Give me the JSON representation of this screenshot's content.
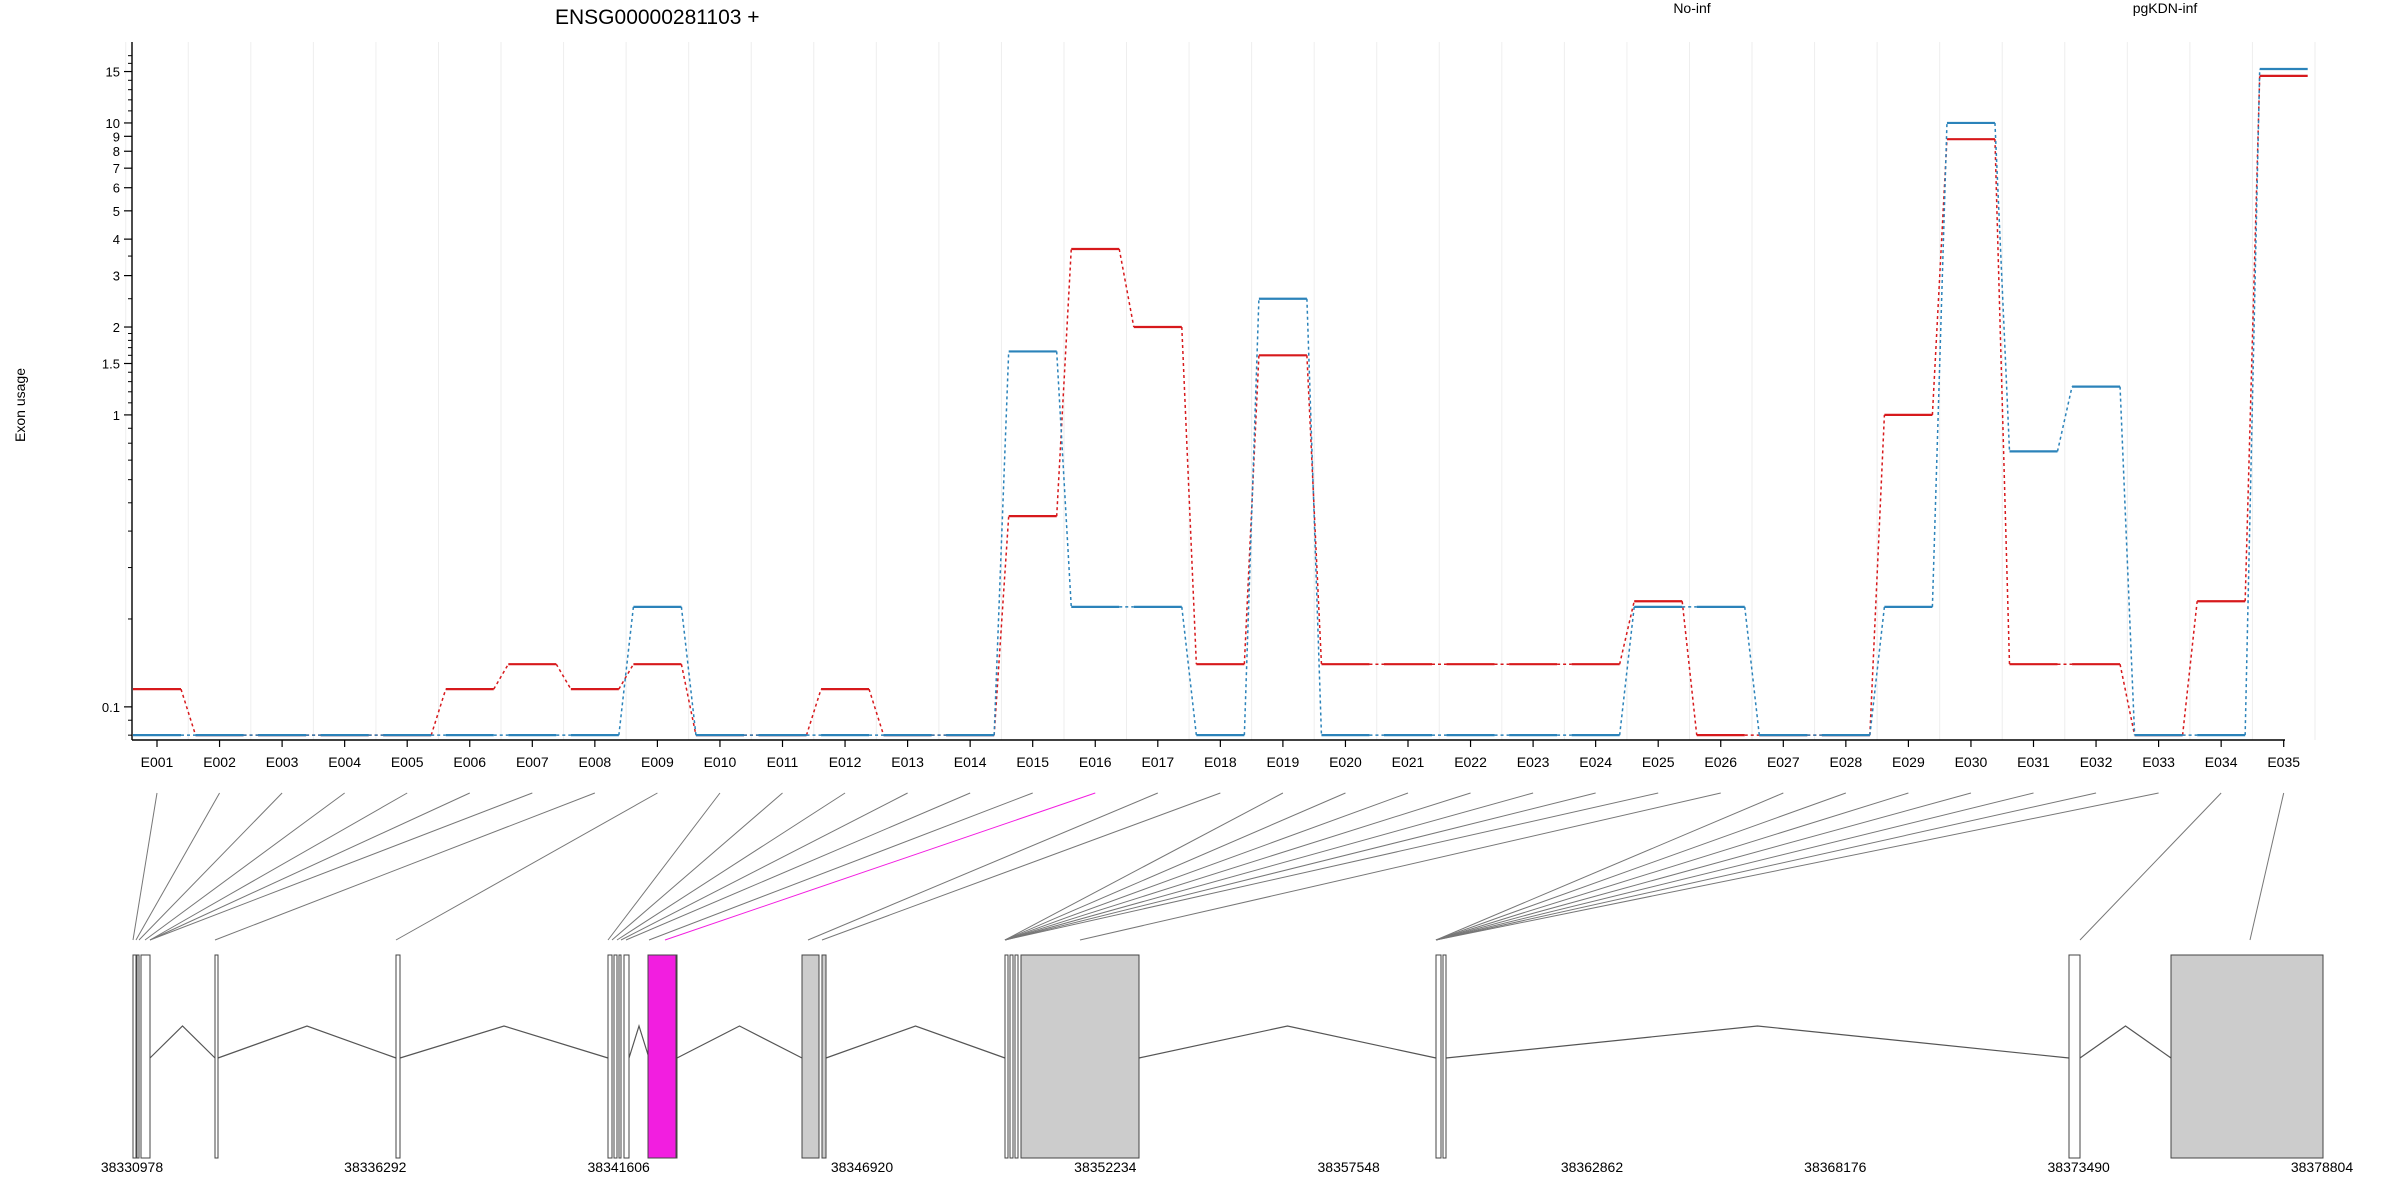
{
  "chart_data": {
    "type": "line",
    "title": "ENSG00000281103 +",
    "ylabel": "Exon usage",
    "yscale": "log",
    "ylim": [
      0.077,
      17.5
    ],
    "yticks": [
      {
        "v": 0.1,
        "label": "0.1"
      },
      {
        "v": 1,
        "label": "1"
      },
      {
        "v": 1.5,
        "label": "1.5"
      },
      {
        "v": 2,
        "label": "2"
      },
      {
        "v": 3,
        "label": "3"
      },
      {
        "v": 4,
        "label": "4"
      },
      {
        "v": 5,
        "label": "5"
      },
      {
        "v": 6,
        "label": "6"
      },
      {
        "v": 7,
        "label": "7"
      },
      {
        "v": 8,
        "label": "8"
      },
      {
        "v": 9,
        "label": "9"
      },
      {
        "v": 10,
        "label": "10"
      },
      {
        "v": 15,
        "label": "15"
      }
    ],
    "categories": [
      "E001",
      "E002",
      "E003",
      "E004",
      "E005",
      "E006",
      "E007",
      "E008",
      "E009",
      "E010",
      "E011",
      "E012",
      "E013",
      "E014",
      "E015",
      "E016",
      "E017",
      "E018",
      "E019",
      "E020",
      "E021",
      "E022",
      "E023",
      "E024",
      "E025",
      "E026",
      "E027",
      "E028",
      "E029",
      "E030",
      "E031",
      "E032",
      "E033",
      "E034",
      "E035"
    ],
    "series": [
      {
        "name": "No-inf",
        "color": "#d7191c",
        "values": [
          0.115,
          0.08,
          0.08,
          0.08,
          0.08,
          0.115,
          0.14,
          0.115,
          0.14,
          0.08,
          0.08,
          0.115,
          0.08,
          0.08,
          0.45,
          3.7,
          2.0,
          0.14,
          1.6,
          0.14,
          0.14,
          0.14,
          0.14,
          0.14,
          0.23,
          0.08,
          0.08,
          0.08,
          1.0,
          8.8,
          0.14,
          0.14,
          0.08,
          0.23,
          14.5
        ]
      },
      {
        "name": "pgKDN-inf",
        "color": "#2b83ba",
        "values": [
          0.08,
          0.08,
          0.08,
          0.08,
          0.08,
          0.08,
          0.08,
          0.08,
          0.22,
          0.08,
          0.08,
          0.08,
          0.08,
          0.08,
          1.65,
          0.22,
          0.22,
          0.08,
          2.5,
          0.08,
          0.08,
          0.08,
          0.08,
          0.08,
          0.22,
          0.22,
          0.08,
          0.08,
          0.22,
          10.0,
          0.75,
          1.25,
          0.08,
          0.08,
          15.3
        ]
      }
    ],
    "gene_track": {
      "coordinate_labels": [
        "38330978",
        "38336292",
        "38341606",
        "38346920",
        "38352234",
        "38357548",
        "38362862",
        "38368176",
        "38373490",
        "38378804"
      ],
      "highlighted_exon": "E016",
      "highlight_color": "#f21ee0",
      "exon_fill": "#cccccc"
    }
  }
}
